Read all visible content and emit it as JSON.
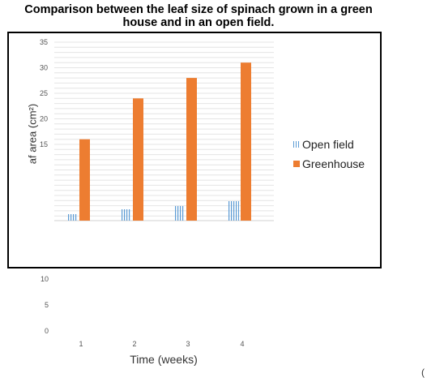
{
  "chart_data": {
    "type": "bar",
    "title": "Comparison between the leaf size of spinach grown in a green house and in an open field.",
    "ylabel": "af area (cm²)",
    "xlabel": "Time (weeks)",
    "categories": [
      "1",
      "2",
      "3",
      "4"
    ],
    "series": [
      {
        "name": "Open field",
        "values": [
          4,
          7,
          9,
          12
        ],
        "color": "#5b9bd5",
        "pattern": "vertical-stripes"
      },
      {
        "name": "Greenhouse",
        "values": [
          16,
          24,
          28,
          31
        ],
        "color": "#ed7d31"
      }
    ],
    "yticks_upper": [
      "35",
      "30",
      "25",
      "20",
      "15"
    ],
    "yticks_lower": [
      "10",
      "5",
      "0"
    ],
    "ylim": [
      0,
      35
    ],
    "legend_position": "right",
    "grid": true
  },
  "labels": {
    "title_line1": "Comparison between the leaf size of spinach grown in a green",
    "title_line2": "house and in an open field.",
    "legend_open": "Open field",
    "legend_green": "Greenhouse",
    "corner_text": "("
  }
}
